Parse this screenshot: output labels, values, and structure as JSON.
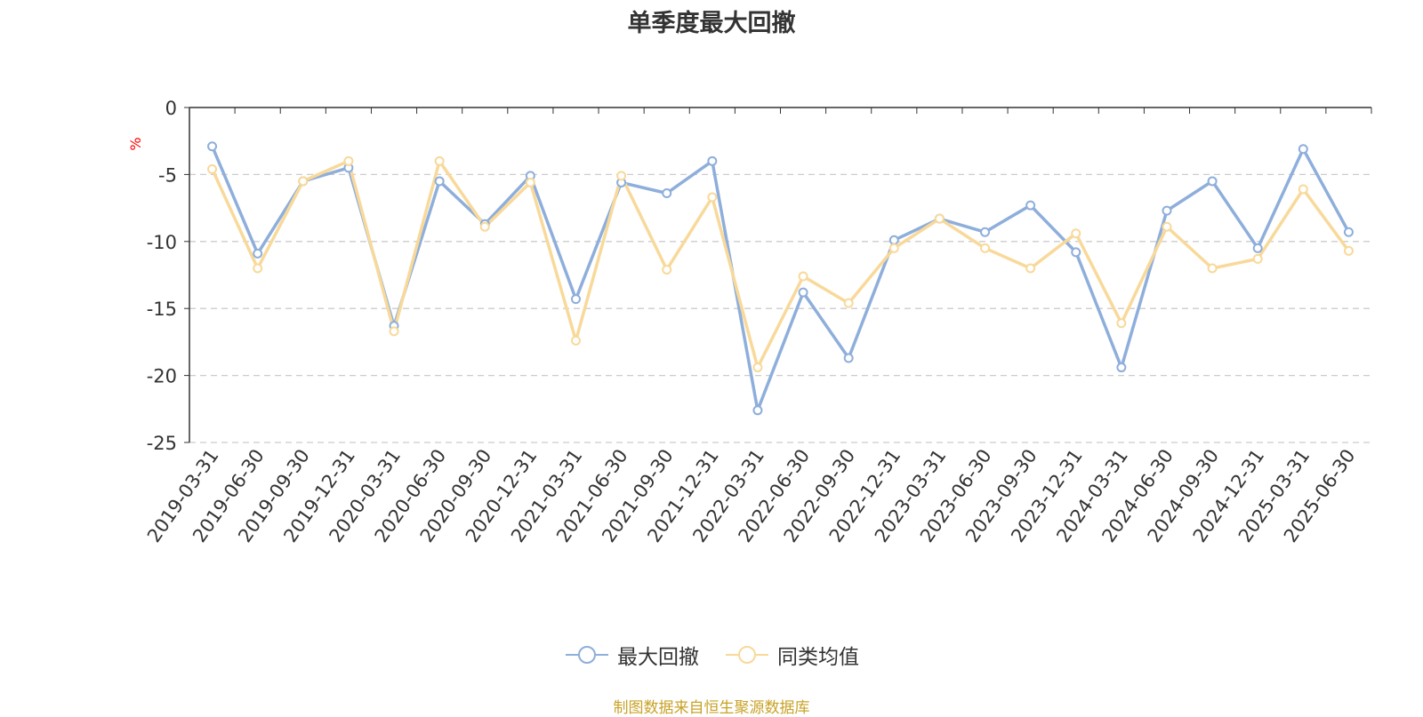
{
  "chart_data": {
    "type": "line",
    "title": "单季度最大回撤",
    "ylabel": "%",
    "ylim": [
      -25,
      0
    ],
    "yticks": [
      0,
      -5,
      -10,
      -15,
      -20,
      -25
    ],
    "grid": true,
    "legend_position": "bottom-center",
    "x": [
      "2019-03-31",
      "2019-06-30",
      "2019-09-30",
      "2019-12-31",
      "2020-03-31",
      "2020-06-30",
      "2020-09-30",
      "2020-12-31",
      "2021-03-31",
      "2021-06-30",
      "2021-09-30",
      "2021-12-31",
      "2022-03-31",
      "2022-06-30",
      "2022-09-30",
      "2022-12-31",
      "2023-03-31",
      "2023-06-30",
      "2023-09-30",
      "2023-12-31",
      "2024-03-31",
      "2024-06-30",
      "2024-09-30",
      "2024-12-31",
      "2025-03-31",
      "2025-06-30"
    ],
    "series": [
      {
        "name": "最大回撤",
        "color": "#8eaedb",
        "values": [
          -2.9,
          -10.9,
          -5.5,
          -4.5,
          -16.3,
          -5.5,
          -8.7,
          -5.1,
          -14.3,
          -5.6,
          -6.4,
          -4.0,
          -22.6,
          -13.8,
          -18.7,
          -9.9,
          -8.3,
          -9.3,
          -7.3,
          -10.8,
          -19.4,
          -7.7,
          -5.5,
          -10.5,
          -3.1,
          -9.3
        ]
      },
      {
        "name": "同类均值",
        "color": "#f8d99a",
        "values": [
          -4.6,
          -12.0,
          -5.5,
          -4.0,
          -16.7,
          -4.0,
          -8.9,
          -5.6,
          -17.4,
          -5.1,
          -12.1,
          -6.7,
          -19.4,
          -12.6,
          -14.6,
          -10.5,
          -8.3,
          -10.5,
          -12.0,
          -9.4,
          -16.1,
          -8.9,
          -12.0,
          -11.3,
          -6.1,
          -10.7
        ]
      }
    ]
  },
  "source_note": "制图数据来自恒生聚源数据库"
}
